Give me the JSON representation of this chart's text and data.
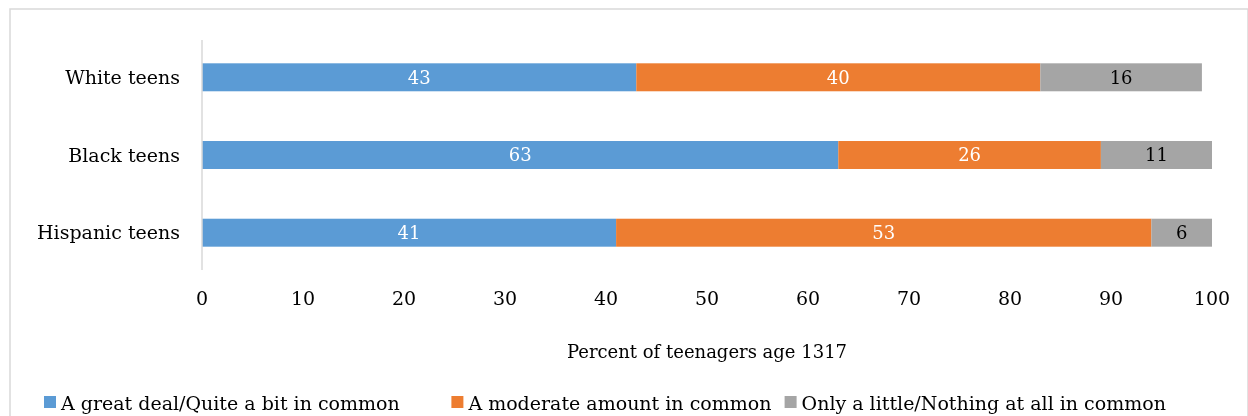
{
  "chart_data": {
    "type": "bar",
    "orientation": "horizontal",
    "stacked": true,
    "categories": [
      "White teens",
      "Black teens",
      "Hispanic teens"
    ],
    "series": [
      {
        "name": "A great deal/Quite a bit in common",
        "color": "#5b9bd5",
        "values": [
          43,
          63,
          41
        ]
      },
      {
        "name": "A moderate amount in common",
        "color": "#ed7d31",
        "values": [
          40,
          26,
          53
        ]
      },
      {
        "name": "Only a little/Nothing at all in common",
        "color": "#a5a5a5",
        "values": [
          16,
          11,
          6
        ]
      }
    ],
    "xlim": [
      0,
      100
    ],
    "xticks": [
      0,
      10,
      20,
      30,
      40,
      50,
      60,
      70,
      80,
      90,
      100
    ],
    "xlabel": "Percent of teenagers age 1317",
    "data_labels": true,
    "legend": "bottom",
    "grid": false
  }
}
